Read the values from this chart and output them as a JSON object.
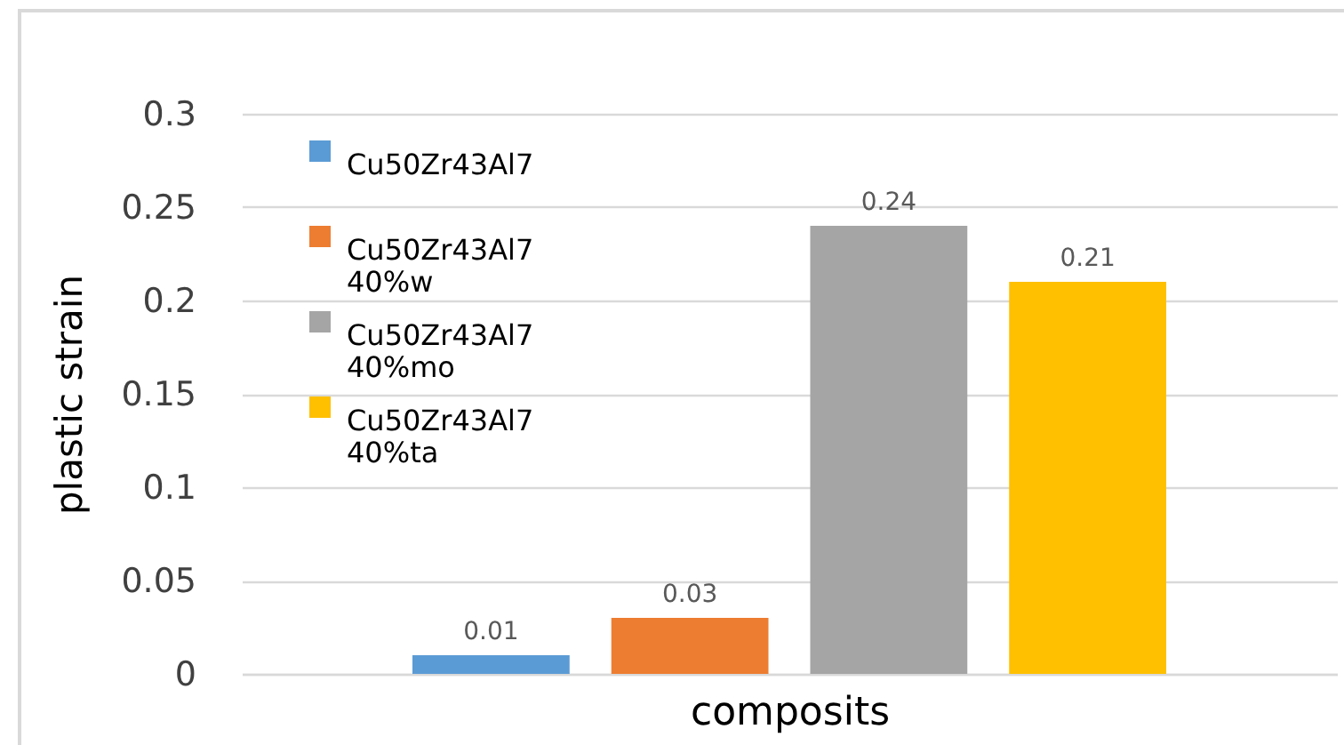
{
  "chart_data": {
    "type": "bar",
    "xlabel": "composits",
    "ylabel": "plastic strain",
    "categories": [
      null
    ],
    "series": [
      {
        "name": "Cu50Zr43Al7",
        "color": "#5b9bd5",
        "values": [
          0.01
        ]
      },
      {
        "name": "Cu50Zr43Al7 40%w",
        "color": "#ed7d31",
        "values": [
          0.03
        ]
      },
      {
        "name": "Cu50Zr43Al7 40%mo",
        "color": "#a5a5a5",
        "values": [
          0.24
        ]
      },
      {
        "name": "Cu50Zr43Al7 40%ta",
        "color": "#ffc000",
        "values": [
          0.21
        ]
      }
    ],
    "ylim": [
      0,
      0.3
    ],
    "yticks": [
      0,
      0.05,
      0.1,
      0.15,
      0.2,
      0.25,
      0.3
    ],
    "grid": "y",
    "data_labels": true,
    "legend": "top left"
  }
}
